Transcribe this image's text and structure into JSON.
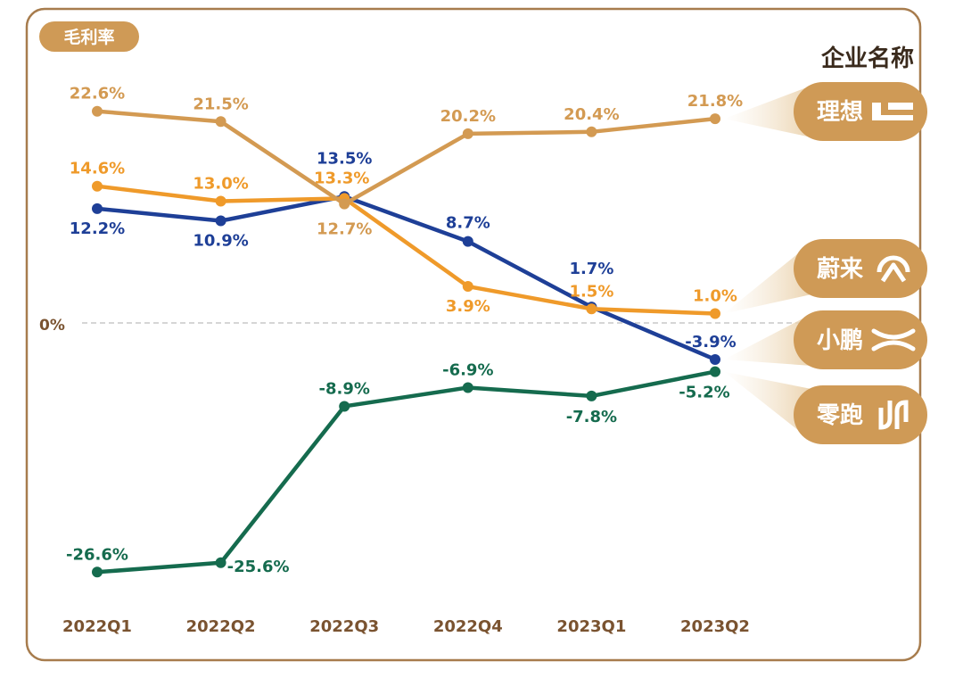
{
  "chart_data": {
    "type": "line",
    "title": "毛利率",
    "legend_title": "企业名称",
    "categories": [
      "2022Q1",
      "2022Q2",
      "2022Q3",
      "2022Q4",
      "2023Q1",
      "2023Q2"
    ],
    "zero_label": "0%",
    "ylim": [
      -28,
      25
    ],
    "series": [
      {
        "id": "lixiang",
        "name": "理想",
        "color": "#d39a52",
        "values": [
          22.6,
          21.5,
          12.7,
          20.2,
          20.4,
          21.8
        ],
        "labels": [
          "22.6%",
          "21.5%",
          "12.7%",
          "20.2%",
          "20.4%",
          "21.8%"
        ]
      },
      {
        "id": "nio",
        "name": "蔚来",
        "color": "#ef9a2a",
        "values": [
          14.6,
          13.0,
          13.3,
          3.9,
          1.5,
          1.0
        ],
        "labels": [
          "14.6%",
          "13.0%",
          "13.3%",
          "3.9%",
          "1.5%",
          "1.0%"
        ]
      },
      {
        "id": "xpeng",
        "name": "小鹏",
        "color": "#1e3f97",
        "values": [
          12.2,
          10.9,
          13.5,
          8.7,
          1.7,
          -3.9
        ],
        "labels": [
          "12.2%",
          "10.9%",
          "13.5%",
          "8.7%",
          "1.7%",
          "-3.9%"
        ]
      },
      {
        "id": "leapmotor",
        "name": "零跑",
        "color": "#156b4e",
        "values": [
          -26.6,
          -25.6,
          -8.9,
          -6.9,
          -7.8,
          -5.2
        ],
        "labels": [
          "-26.6%",
          "-25.6%",
          "-8.9%",
          "-6.9%",
          "-7.8%",
          "-5.2%"
        ]
      }
    ],
    "legend": [
      {
        "series": "lixiang",
        "label": "理想",
        "icon": "lixiang-logo-icon"
      },
      {
        "series": "nio",
        "label": "蔚来",
        "icon": "nio-logo-icon"
      },
      {
        "series": "xpeng",
        "label": "小鹏",
        "icon": "xpeng-logo-icon"
      },
      {
        "series": "leapmotor",
        "label": "零跑",
        "icon": "leapmotor-logo-icon"
      }
    ],
    "colors": {
      "frame": "#a77c4d",
      "legend_fill": "#cf9a56",
      "axis_label": "#7a5330",
      "zero_line": "#c9c9c9"
    }
  }
}
